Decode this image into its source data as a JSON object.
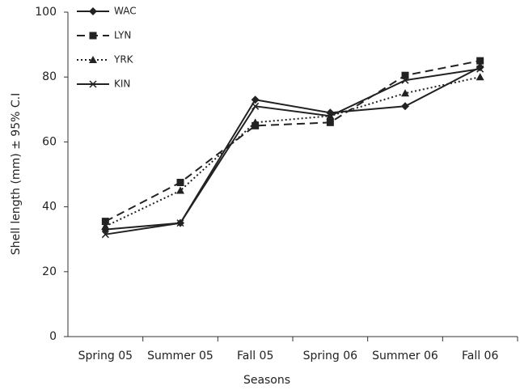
{
  "chart_data": {
    "type": "line",
    "x_label": "Seasons",
    "y_label": "Shell length  (mm) ± 95% C.I",
    "categories": [
      "Spring 05",
      "Summer 05",
      "Fall 05",
      "Spring 06",
      "Summer 06",
      "Fall 06"
    ],
    "series": [
      {
        "name": "WAC",
        "color": "#222222",
        "marker": "diamond",
        "dash": "solid",
        "values": [
          33,
          35,
          73,
          69,
          71,
          83
        ]
      },
      {
        "name": "LYN",
        "color": "#222222",
        "marker": "square",
        "dash": "dashed",
        "values": [
          35.5,
          47.5,
          65,
          66,
          80.5,
          85
        ]
      },
      {
        "name": "YRK",
        "color": "#222222",
        "marker": "triangle",
        "dash": "dotted",
        "values": [
          34,
          45,
          66,
          68,
          75,
          80
        ]
      },
      {
        "name": "KIN",
        "color": "#222222",
        "marker": "x",
        "dash": "solid",
        "values": [
          31.5,
          35,
          71,
          68,
          79,
          82.5
        ]
      }
    ],
    "ylim": [
      0,
      100
    ],
    "yticks": [
      0,
      20,
      40,
      60,
      80,
      100
    ],
    "grid": false,
    "legend": "upper left"
  }
}
